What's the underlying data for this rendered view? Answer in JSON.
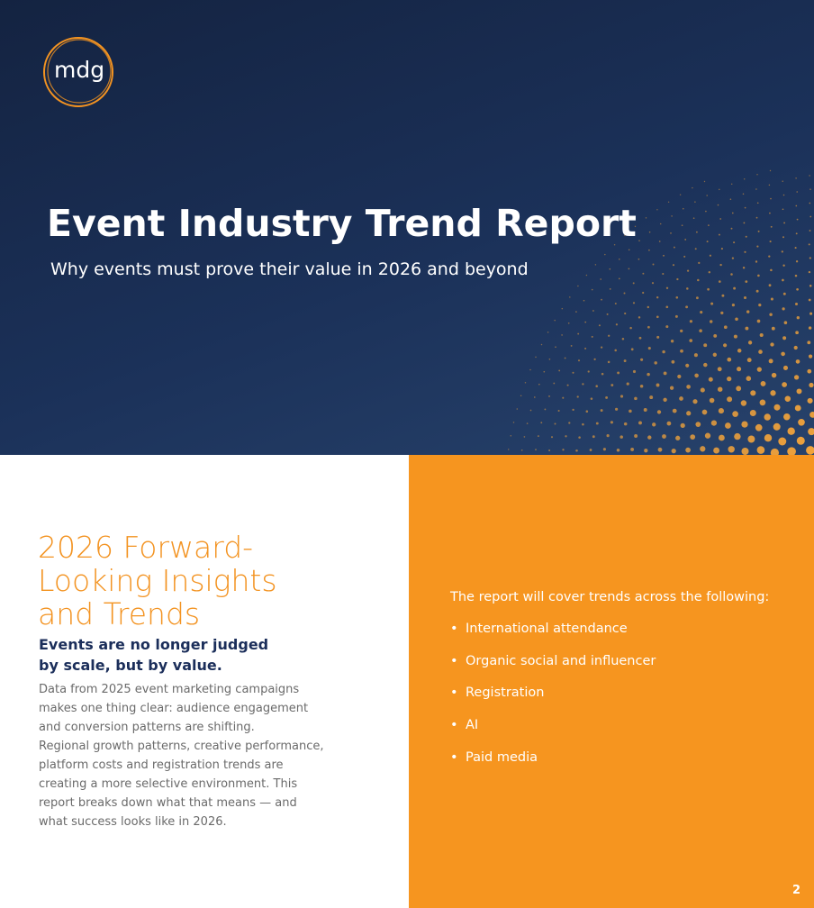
{
  "header": {
    "logo": "mdg",
    "title": "Event Industry Trend Report",
    "subtitle": "Why events must prove their value in 2026 and beyond"
  },
  "section": {
    "heading_lines": [
      "2026 Forward-",
      "Looking Insights",
      "and Trends"
    ],
    "subheading_lines": [
      "Events are no longer judged",
      "by scale, but by value."
    ],
    "body_lines": [
      "Data from 2025 event marketing campaigns",
      "makes one thing clear: audience engagement",
      "and conversion patterns are shifting.",
      "Regional growth patterns, creative performance,",
      "platform costs and registration trends are",
      "creating a more selective environment. This",
      "report breaks down what that means — and",
      "what success looks like in 2026."
    ]
  },
  "coverage": {
    "intro": "The report will cover trends across the following:",
    "items": [
      "International attendance",
      "Organic social and influencer",
      "Registration",
      "AI",
      "Paid media"
    ]
  },
  "page_number": "2"
}
